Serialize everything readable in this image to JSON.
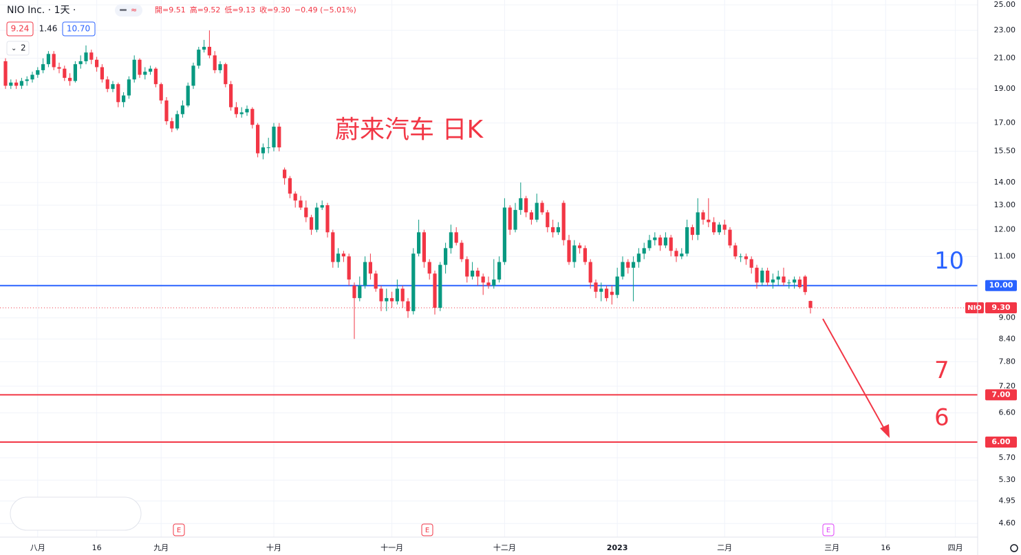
{
  "chart_data": {
    "type": "candlestick",
    "title": "NIO Inc. · 1天 ·",
    "ohlc_legend": [
      "開=9.51",
      "高=9.52",
      "低=9.13",
      "收=9.30",
      "−0.49 (−5.01%)"
    ],
    "indicator_values": [
      "9.24",
      "1.46",
      "10.70"
    ],
    "indicator_count": "2",
    "annotation": "蔚来汽车 日K",
    "earnings": [
      "E",
      "E",
      "E"
    ],
    "log_scale": true,
    "grid": true,
    "up_color": "#089981",
    "down_color": "#f23645",
    "ylim": [
      4.4,
      25.4
    ],
    "yticks": [
      {
        "value": 25,
        "label": "25.00"
      },
      {
        "value": 23,
        "label": "23.00"
      },
      {
        "value": 21,
        "label": "21.00"
      },
      {
        "value": 19,
        "label": "19.00"
      },
      {
        "value": 17,
        "label": "17.00"
      },
      {
        "value": 15.5,
        "label": "15.50"
      },
      {
        "value": 14,
        "label": "14.00"
      },
      {
        "value": 13,
        "label": "13.00"
      },
      {
        "value": 12,
        "label": "12.00"
      },
      {
        "value": 11,
        "label": "11.00"
      },
      {
        "value": 9,
        "label": "9.00"
      },
      {
        "value": 8.4,
        "label": "8.40"
      },
      {
        "value": 7.8,
        "label": "7.80"
      },
      {
        "value": 7.2,
        "label": "7.20"
      },
      {
        "value": 6.6,
        "label": "6.60"
      },
      {
        "value": 5.7,
        "label": "5.70"
      },
      {
        "value": 5.3,
        "label": "5.30"
      },
      {
        "value": 4.95,
        "label": "4.95"
      },
      {
        "value": 4.6,
        "label": "4.60"
      }
    ],
    "hlines": [
      {
        "value": 10,
        "value_label": "10.00",
        "label": "10",
        "color": "#2962ff"
      },
      {
        "value": 7,
        "value_label": "7.00",
        "label": "7",
        "color": "#f23645"
      },
      {
        "value": 6,
        "value_label": "6.00",
        "label": "6",
        "color": "#f23645"
      }
    ],
    "last_price": {
      "symbol": "NIO",
      "value": 9.3,
      "label": "9.30",
      "color": "#f23645"
    },
    "categories": [
      null,
      null,
      null,
      null,
      null,
      null,
      "八月",
      null,
      null,
      null,
      null,
      null,
      null,
      null,
      null,
      null,
      null,
      "16",
      null,
      null,
      null,
      null,
      null,
      null,
      null,
      null,
      null,
      null,
      null,
      "九月",
      null,
      null,
      null,
      null,
      null,
      null,
      null,
      null,
      null,
      null,
      null,
      null,
      null,
      null,
      null,
      null,
      null,
      null,
      null,
      null,
      "十月",
      null,
      null,
      null,
      null,
      null,
      null,
      null,
      null,
      null,
      null,
      null,
      null,
      null,
      null,
      null,
      null,
      null,
      null,
      null,
      null,
      null,
      "十一月",
      null,
      null,
      null,
      null,
      null,
      null,
      null,
      null,
      null,
      null,
      null,
      null,
      null,
      null,
      null,
      null,
      null,
      null,
      null,
      null,
      "十二月",
      null,
      null,
      null,
      null,
      null,
      null,
      null,
      null,
      null,
      null,
      null,
      null,
      null,
      null,
      null,
      null,
      null,
      null,
      null,
      null,
      "2023",
      null,
      null,
      null,
      null,
      null,
      null,
      null,
      null,
      null,
      null,
      null,
      null,
      null,
      null,
      null,
      null,
      null,
      null,
      null,
      "二月",
      null,
      null,
      null,
      null,
      null,
      null,
      null,
      null,
      null,
      null,
      null,
      null,
      null,
      null,
      null,
      null,
      null,
      null,
      null,
      "三月",
      null,
      null,
      null,
      null,
      null,
      null,
      null,
      null,
      null,
      "16",
      null,
      null,
      null,
      null,
      null,
      null,
      null,
      null,
      null,
      null,
      null,
      null,
      "四月",
      null,
      null,
      null,
      null
    ],
    "series": [
      {
        "name": "NIO",
        "values": [
          [
            20.8,
            21.0,
            19.0,
            19.2
          ],
          [
            19.2,
            19.6,
            19.0,
            19.4
          ],
          [
            19.4,
            19.6,
            19.0,
            19.2
          ],
          [
            19.2,
            19.7,
            19.0,
            19.5
          ],
          [
            19.5,
            19.8,
            19.2,
            19.6
          ],
          [
            19.6,
            20.1,
            19.4,
            19.9
          ],
          [
            19.9,
            20.4,
            19.7,
            20.2
          ],
          [
            20.2,
            21.0,
            20.0,
            20.6
          ],
          [
            20.6,
            21.5,
            20.4,
            21.3
          ],
          [
            21.3,
            21.5,
            20.2,
            20.4
          ],
          [
            20.4,
            20.7,
            20.0,
            20.3
          ],
          [
            20.3,
            20.5,
            19.5,
            19.7
          ],
          [
            19.7,
            20.0,
            19.2,
            19.5
          ],
          [
            19.5,
            20.8,
            19.4,
            20.6
          ],
          [
            20.6,
            21.2,
            20.3,
            20.8
          ],
          [
            20.8,
            21.9,
            20.6,
            21.4
          ],
          [
            21.4,
            21.6,
            20.6,
            20.9
          ],
          [
            20.9,
            21.1,
            20.1,
            20.4
          ],
          [
            20.4,
            20.6,
            19.4,
            19.6
          ],
          [
            19.6,
            19.8,
            18.8,
            19.0
          ],
          [
            19.0,
            19.5,
            18.8,
            19.3
          ],
          [
            19.3,
            19.4,
            17.9,
            18.2
          ],
          [
            18.2,
            18.8,
            17.9,
            18.6
          ],
          [
            18.6,
            19.8,
            18.4,
            19.6
          ],
          [
            19.6,
            21.2,
            19.4,
            20.9
          ],
          [
            20.9,
            21.0,
            19.7,
            19.9
          ],
          [
            19.9,
            20.4,
            19.6,
            20.1
          ],
          [
            20.1,
            20.5,
            19.9,
            20.3
          ],
          [
            20.3,
            20.4,
            19.1,
            19.3
          ],
          [
            19.3,
            19.4,
            18.1,
            18.3
          ],
          [
            18.3,
            18.5,
            16.9,
            17.1
          ],
          [
            17.1,
            17.3,
            16.5,
            16.7
          ],
          [
            16.7,
            17.7,
            16.6,
            17.5
          ],
          [
            17.5,
            18.3,
            17.3,
            18.0
          ],
          [
            18.0,
            19.4,
            17.9,
            19.2
          ],
          [
            19.2,
            20.7,
            19.0,
            20.5
          ],
          [
            20.5,
            21.8,
            20.3,
            21.6
          ],
          [
            21.6,
            22.3,
            21.4,
            21.8
          ],
          [
            21.8,
            23.0,
            21.0,
            21.2
          ],
          [
            21.2,
            21.5,
            20.0,
            20.2
          ],
          [
            20.2,
            20.8,
            20.0,
            20.6
          ],
          [
            20.6,
            20.7,
            19.1,
            19.3
          ],
          [
            19.3,
            19.5,
            17.7,
            17.9
          ],
          [
            17.9,
            18.2,
            17.3,
            17.5
          ],
          [
            17.5,
            17.9,
            17.3,
            17.6
          ],
          [
            17.6,
            18.0,
            17.4,
            17.8
          ],
          [
            17.8,
            17.9,
            16.7,
            16.9
          ],
          [
            16.9,
            17.0,
            15.2,
            15.4
          ],
          [
            15.4,
            15.9,
            15.1,
            15.7
          ],
          [
            15.7,
            16.2,
            15.4,
            15.7
          ],
          [
            15.7,
            17.0,
            15.5,
            16.8
          ],
          [
            16.8,
            17.0,
            15.5,
            15.7
          ],
          [
            14.6,
            14.7,
            13.9,
            14.2
          ],
          [
            14.2,
            14.3,
            13.3,
            13.5
          ],
          [
            13.5,
            13.6,
            12.9,
            13.2
          ],
          [
            13.2,
            13.4,
            12.8,
            12.9
          ],
          [
            12.9,
            13.2,
            12.3,
            12.5
          ],
          [
            12.5,
            12.6,
            11.8,
            12.0
          ],
          [
            12.0,
            13.1,
            11.9,
            12.9
          ],
          [
            12.9,
            13.2,
            12.8,
            13.0
          ],
          [
            13.0,
            13.1,
            11.7,
            11.9
          ],
          [
            11.9,
            12.0,
            10.6,
            10.8
          ],
          [
            10.8,
            11.3,
            10.6,
            11.1
          ],
          [
            11.1,
            11.2,
            10.8,
            11.0
          ],
          [
            11.0,
            11.1,
            10.0,
            10.2
          ],
          [
            10.0,
            10.1,
            8.4,
            9.6
          ],
          [
            9.6,
            10.3,
            9.5,
            10.0
          ],
          [
            10.0,
            11.0,
            9.9,
            10.8
          ],
          [
            10.8,
            11.1,
            10.2,
            10.4
          ],
          [
            10.4,
            10.5,
            9.8,
            9.9
          ],
          [
            9.9,
            10.0,
            9.2,
            9.5
          ],
          [
            9.5,
            9.9,
            9.2,
            9.6
          ],
          [
            9.6,
            9.8,
            9.3,
            9.5
          ],
          [
            9.5,
            10.2,
            9.4,
            9.9
          ],
          [
            9.9,
            10.0,
            9.3,
            9.5
          ],
          [
            9.5,
            9.6,
            9.0,
            9.2
          ],
          [
            9.2,
            11.3,
            9.1,
            11.1
          ],
          [
            11.1,
            12.4,
            11.0,
            11.9
          ],
          [
            11.9,
            12.0,
            10.6,
            10.8
          ],
          [
            10.8,
            10.9,
            10.2,
            10.4
          ],
          [
            10.4,
            10.5,
            9.1,
            9.3
          ],
          [
            9.3,
            10.8,
            9.2,
            10.7
          ],
          [
            10.7,
            11.5,
            10.4,
            11.3
          ],
          [
            11.3,
            12.2,
            11.1,
            11.9
          ],
          [
            11.9,
            12.1,
            11.4,
            11.5
          ],
          [
            11.5,
            11.6,
            10.8,
            10.9
          ],
          [
            10.9,
            11.0,
            10.1,
            10.3
          ],
          [
            10.3,
            10.8,
            10.2,
            10.5
          ],
          [
            10.5,
            10.6,
            10.0,
            10.3
          ],
          [
            10.3,
            10.4,
            9.7,
            10.1
          ],
          [
            10.1,
            10.3,
            9.9,
            10.0
          ],
          [
            10.0,
            10.9,
            9.9,
            10.2
          ],
          [
            10.2,
            11.0,
            10.1,
            10.8
          ],
          [
            10.8,
            13.3,
            10.7,
            12.9
          ],
          [
            12.9,
            13.0,
            11.8,
            12.0
          ],
          [
            12.0,
            13.1,
            11.9,
            12.8
          ],
          [
            12.8,
            14.0,
            12.6,
            13.3
          ],
          [
            13.3,
            13.4,
            12.5,
            12.7
          ],
          [
            12.7,
            12.8,
            12.2,
            12.4
          ],
          [
            12.4,
            13.5,
            12.3,
            13.1
          ],
          [
            13.1,
            13.2,
            12.6,
            12.7
          ],
          [
            12.7,
            12.8,
            11.9,
            12.1
          ],
          [
            12.1,
            12.4,
            11.7,
            11.9
          ],
          [
            11.9,
            12.3,
            11.8,
            12.1
          ],
          [
            13.1,
            13.2,
            11.4,
            11.6
          ],
          [
            11.6,
            11.8,
            10.7,
            10.8
          ],
          [
            10.8,
            11.6,
            10.6,
            11.4
          ],
          [
            11.4,
            11.5,
            11.1,
            11.3
          ],
          [
            11.3,
            11.4,
            10.7,
            10.8
          ],
          [
            10.8,
            10.9,
            9.9,
            10.1
          ],
          [
            10.1,
            10.2,
            9.6,
            9.8
          ],
          [
            9.8,
            10.1,
            9.5,
            9.9
          ],
          [
            9.9,
            10.0,
            9.5,
            9.6
          ],
          [
            9.8,
            10.0,
            9.4,
            9.7
          ],
          [
            9.7,
            10.6,
            9.6,
            10.3
          ],
          [
            10.3,
            11.0,
            10.2,
            10.8
          ],
          [
            10.8,
            10.9,
            10.4,
            10.6
          ],
          [
            10.6,
            11.0,
            9.5,
            10.8
          ],
          [
            10.8,
            11.3,
            10.6,
            11.1
          ],
          [
            11.1,
            11.5,
            10.9,
            11.3
          ],
          [
            11.3,
            11.8,
            11.2,
            11.6
          ],
          [
            11.6,
            11.9,
            11.4,
            11.7
          ],
          [
            11.7,
            11.8,
            11.2,
            11.4
          ],
          [
            11.4,
            11.9,
            11.3,
            11.7
          ],
          [
            11.7,
            11.8,
            11.0,
            11.2
          ],
          [
            11.2,
            11.3,
            10.8,
            11.0
          ],
          [
            11.0,
            11.3,
            10.9,
            11.1
          ],
          [
            11.1,
            12.4,
            11.0,
            12.1
          ],
          [
            12.1,
            12.2,
            11.6,
            11.8
          ],
          [
            11.8,
            13.3,
            11.6,
            12.7
          ],
          [
            12.7,
            12.8,
            12.2,
            12.4
          ],
          [
            12.4,
            13.3,
            12.1,
            12.3
          ],
          [
            12.3,
            12.5,
            11.8,
            11.9
          ],
          [
            11.9,
            12.3,
            11.8,
            12.2
          ],
          [
            12.2,
            12.4,
            11.8,
            12.0
          ],
          [
            12.0,
            12.1,
            11.3,
            11.4
          ],
          [
            11.4,
            11.5,
            10.9,
            11.0
          ],
          [
            11.0,
            11.1,
            10.8,
            11.0
          ],
          [
            11.0,
            11.1,
            10.7,
            10.9
          ],
          [
            10.9,
            11.0,
            10.4,
            10.6
          ],
          [
            10.6,
            10.7,
            9.9,
            10.1
          ],
          [
            10.1,
            10.6,
            10.0,
            10.5
          ],
          [
            10.5,
            10.6,
            10.0,
            10.1
          ],
          [
            10.1,
            10.4,
            9.9,
            10.2
          ],
          [
            10.2,
            10.5,
            10.0,
            10.3
          ],
          [
            10.3,
            10.6,
            10.0,
            10.1
          ],
          [
            10.1,
            10.2,
            9.9,
            10.1
          ],
          [
            10.1,
            10.3,
            9.9,
            10.2
          ],
          [
            10.2,
            10.3,
            9.9,
            9.95
          ],
          [
            10.3,
            10.35,
            9.7,
            9.79
          ],
          [
            9.51,
            9.52,
            9.13,
            9.3
          ],
          null,
          null,
          null,
          null,
          null,
          null,
          null,
          null,
          null,
          null,
          null,
          null,
          null,
          null,
          null,
          null,
          null,
          null,
          null,
          null,
          null,
          null,
          null,
          null,
          null,
          null,
          null,
          null,
          null,
          null,
          null
        ]
      }
    ]
  }
}
